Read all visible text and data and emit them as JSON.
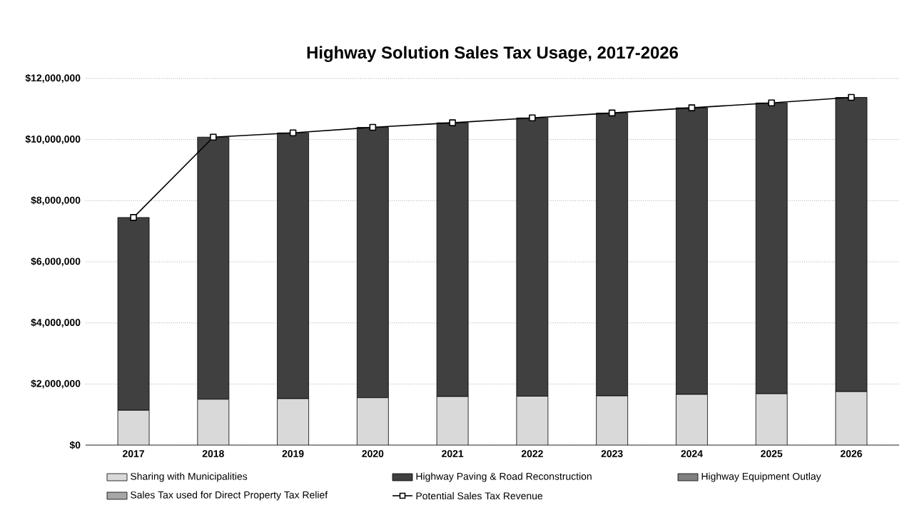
{
  "chart_data": {
    "type": "bar",
    "title": "Highway Solution Sales Tax Usage,  2017-2026",
    "categories": [
      "2017",
      "2018",
      "2019",
      "2020",
      "2021",
      "2022",
      "2023",
      "2024",
      "2025",
      "2026"
    ],
    "stacked": true,
    "series": [
      {
        "name": "Sharing with Municipalities",
        "color": "#d9d9d9",
        "values": [
          1140000,
          1500000,
          1520000,
          1550000,
          1590000,
          1600000,
          1610000,
          1660000,
          1680000,
          1750000
        ]
      },
      {
        "name": "Highway Paving & Road Reconstruction",
        "color": "#404040",
        "values": [
          6310000,
          8580000,
          8700000,
          8850000,
          8960000,
          9110000,
          9260000,
          9380000,
          9520000,
          9630000
        ]
      },
      {
        "name": "Highway Equipment Outlay",
        "color": "#808080",
        "values": [
          null,
          null,
          null,
          null,
          null,
          null,
          null,
          null,
          null,
          null
        ]
      },
      {
        "name": "Sales Tax used for Direct Property Tax Relief",
        "color": "#a6a6a6",
        "values": [
          null,
          null,
          null,
          null,
          null,
          null,
          null,
          null,
          null,
          null
        ]
      },
      {
        "name": "Potential Sales Tax Revenue",
        "type": "line",
        "color": "#000000",
        "marker": "square",
        "values": [
          7450000,
          10080000,
          10220000,
          10400000,
          10550000,
          10710000,
          10870000,
          11040000,
          11200000,
          11380000
        ]
      }
    ],
    "ylim": [
      0,
      12000000
    ],
    "yticks": [
      {
        "value": 0,
        "label": "$0"
      },
      {
        "value": 2000000,
        "label": "$2,000,000"
      },
      {
        "value": 4000000,
        "label": "$4,000,000"
      },
      {
        "value": 6000000,
        "label": "$6,000,000"
      },
      {
        "value": 8000000,
        "label": "$8,000,000"
      },
      {
        "value": 10000000,
        "label": "$10,000,000"
      },
      {
        "value": 12000000,
        "label": "$12,000,000"
      }
    ],
    "grid": "y",
    "legend": "bottom"
  }
}
